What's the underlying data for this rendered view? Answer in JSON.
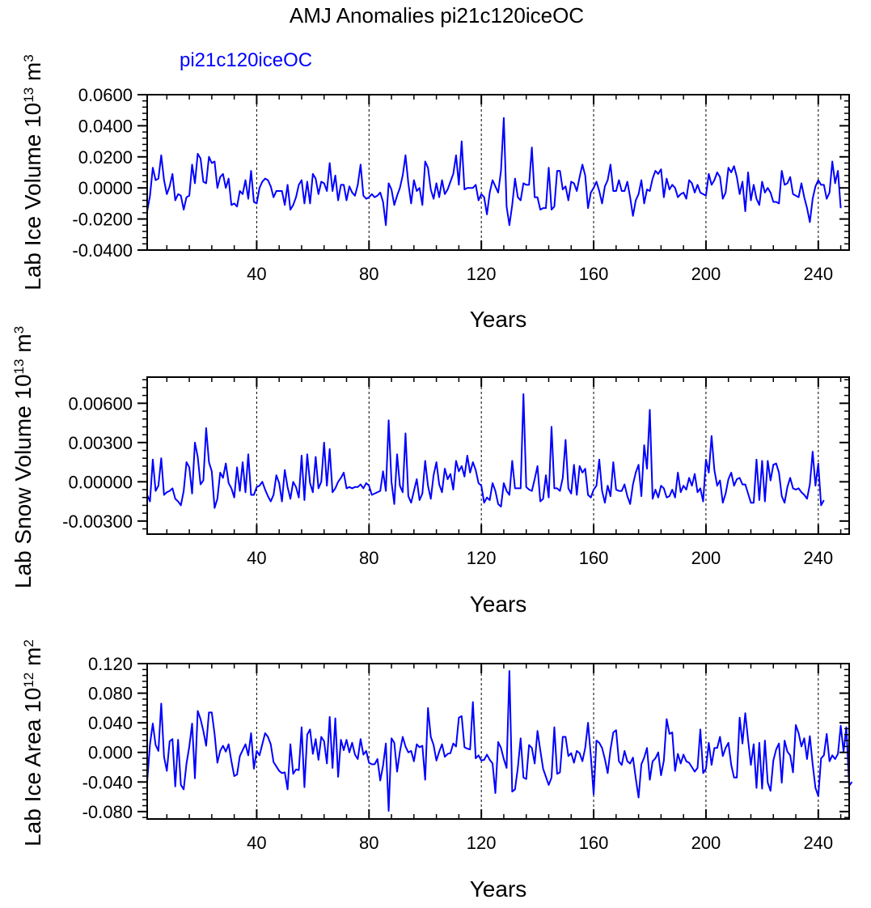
{
  "title": "AMJ Anomalies pi21c120iceOC",
  "legend_label": "pi21c120iceOC",
  "colors": {
    "series": "#0000ff",
    "axis": "#000000",
    "grid": "#000000"
  },
  "chart_data": [
    {
      "type": "line",
      "name": "ice-volume",
      "ylabel_main": "Lab Ice Volume 10",
      "ylabel_sup": "13",
      "ylabel_unit": "m",
      "ylabel_unit_sup": "3",
      "xlabel": "Years",
      "xlim": [
        1,
        251
      ],
      "ylim": [
        -0.04,
        0.06
      ],
      "yticks": [
        -0.04,
        -0.02,
        0.0,
        0.02,
        0.04,
        0.06
      ],
      "ytick_labels": [
        "-0.0400",
        "-0.0200",
        "0.0000",
        "0.0200",
        "0.0400",
        "0.0600"
      ],
      "xticks": [
        40,
        80,
        120,
        160,
        200,
        240
      ],
      "xtick_labels": [
        "40",
        "80",
        "120",
        "160",
        "200",
        "240"
      ],
      "grid_x": [
        40,
        80,
        120,
        160,
        200,
        240
      ],
      "series": [
        {
          "name": "pi21c120iceOC",
          "values": [
            -0.015,
            -0.005,
            0.013,
            0.005,
            0.006,
            0.021,
            0.005,
            -0.004,
            0.001,
            0.009,
            -0.008,
            -0.004,
            -0.005,
            -0.014,
            -0.006,
            -0.005,
            0.015,
            0.003,
            0.022,
            0.019,
            0.004,
            0.003,
            0.02,
            0.016,
            0.017,
            0.0,
            0.007,
            0.009,
            0.0,
            0.006,
            -0.011,
            -0.01,
            -0.012,
            -0.002,
            -0.004,
            0.005,
            -0.007,
            0.011,
            -0.009,
            -0.01,
            0.0,
            0.004,
            0.006,
            0.005,
            0.001,
            -0.006,
            -0.002,
            -0.002,
            -0.002,
            -0.011,
            0.002,
            -0.014,
            -0.011,
            -0.006,
            0.002,
            0.005,
            -0.01,
            0.004,
            -0.01,
            0.009,
            0.006,
            -0.004,
            0.004,
            0.003,
            -0.002,
            0.016,
            -0.002,
            0.008,
            -0.008,
            0.002,
            0.002,
            -0.008,
            0.001,
            -0.003,
            -0.005,
            0.002,
            0.015,
            -0.005,
            -0.007,
            -0.006,
            -0.004,
            -0.006,
            -0.005,
            -0.003,
            -0.009,
            -0.024,
            0.003,
            -0.001,
            -0.011,
            -0.005,
            0.0,
            0.008,
            0.021,
            0.003,
            -0.01,
            0.005,
            -0.002,
            0.0,
            -0.011,
            0.017,
            0.013,
            -0.001,
            -0.007,
            0.003,
            -0.006,
            0.005,
            -0.004,
            -0.001,
            0.004,
            0.009,
            0.021,
            0.002,
            0.03,
            -0.001,
            0.0,
            0.0,
            0.0,
            0.002,
            -0.008,
            -0.004,
            -0.006,
            -0.017,
            -0.003,
            0.005,
            0.001,
            -0.003,
            0.011,
            0.045,
            -0.012,
            -0.024,
            -0.011,
            0.006,
            -0.006,
            -0.008,
            0.003,
            0.002,
            0.002,
            0.026,
            -0.006,
            -0.006,
            -0.014,
            -0.013,
            -0.013,
            0.013,
            -0.014,
            -0.012,
            0.011,
            0.011,
            -0.001,
            0.001,
            -0.008,
            0.004,
            0.003,
            -0.002,
            0.007,
            0.015,
            0.008,
            -0.013,
            -0.003,
            0.0,
            0.004,
            -0.002,
            -0.01,
            0.001,
            0.005,
            0.015,
            -0.002,
            -0.002,
            0.005,
            -0.002,
            -0.002,
            0.004,
            -0.006,
            -0.018,
            -0.008,
            -0.004,
            0.005,
            -0.01,
            -0.001,
            -0.002,
            0.006,
            0.011,
            0.009,
            0.012,
            -0.006,
            0.006,
            -0.001,
            0.002,
            0.0,
            -0.006,
            -0.004,
            -0.003,
            -0.007,
            0.005,
            0.003,
            -0.003,
            0.002,
            -0.003,
            -0.004,
            -0.005,
            0.009,
            0.002,
            0.005,
            0.01,
            0.007,
            -0.007,
            -0.003,
            0.013,
            0.01,
            0.014,
            0.007,
            -0.004,
            0.004,
            -0.015,
            0.01,
            -0.008,
            0.002,
            -0.007,
            -0.011,
            0.004,
            -0.003,
            0.0,
            -0.003,
            -0.009,
            -0.009,
            -0.01,
            0.011,
            0.002,
            0.003,
            0.007,
            -0.004,
            -0.005,
            -0.006,
            0.003,
            -0.006,
            -0.013,
            -0.022,
            -0.007,
            0.001,
            0.005,
            0.002,
            0.002,
            -0.007,
            -0.003,
            0.017,
            0.003,
            0.011,
            -0.013
          ]
        }
      ]
    },
    {
      "type": "line",
      "name": "snow-volume",
      "ylabel_main": "Lab Snow Volume 10",
      "ylabel_sup": "13",
      "ylabel_unit": "m",
      "ylabel_unit_sup": "3",
      "xlabel": "Years",
      "xlim": [
        1,
        251
      ],
      "ylim": [
        -0.004,
        0.008
      ],
      "yticks": [
        -0.003,
        0.0,
        0.003,
        0.006
      ],
      "ytick_labels": [
        "-0.00300",
        "0.00000",
        "0.00300",
        "0.00600"
      ],
      "xticks": [
        40,
        80,
        120,
        160,
        200,
        240
      ],
      "xtick_labels": [
        "40",
        "80",
        "120",
        "160",
        "200",
        "240"
      ],
      "grid_x": [
        40,
        80,
        120,
        160,
        200,
        240
      ],
      "series": [
        {
          "name": "pi21c120iceOC",
          "values": [
            -0.001,
            -0.0015,
            0.0017,
            -0.0007,
            -0.0003,
            0.0018,
            -0.001,
            -0.0008,
            -0.0007,
            -0.0005,
            -0.0013,
            -0.0015,
            -0.0018,
            -0.0007,
            0.0015,
            0.0011,
            -0.0009,
            0.003,
            0.0019,
            -0.0002,
            0.0001,
            0.0041,
            0.0015,
            0.0008,
            -0.002,
            -0.0013,
            0.0007,
            0.0003,
            0.0014,
            -0.0001,
            -0.0005,
            -0.0012,
            0.0011,
            -0.0007,
            0.0015,
            -0.0008,
            0.0021,
            -0.001,
            -0.001,
            -0.0004,
            -0.0003,
            0.0,
            -0.0006,
            -0.0011,
            -0.0015,
            -0.001,
            0.0005,
            -0.0001,
            -0.0015,
            0.0009,
            -0.0004,
            -0.0013,
            0.0,
            -0.0004,
            -0.0012,
            0.002,
            -0.0014,
            0.0021,
            -0.0001,
            -0.0008,
            0.0019,
            -0.0005,
            0.0,
            0.003,
            -0.0003,
            0.0025,
            -0.0008,
            -0.0005,
            0.0,
            0.0003,
            0.0007,
            -0.0005,
            -0.0004,
            -0.0005,
            -0.0004,
            -0.0004,
            -0.0002,
            -0.0005,
            -0.0001,
            -0.0003,
            -0.001,
            -0.0009,
            -0.0008,
            -0.0007,
            0.0008,
            -0.0007,
            0.0047,
            0.0,
            -0.0017,
            0.0021,
            -0.0003,
            -0.0008,
            0.0037,
            -0.0011,
            -0.0016,
            -0.0007,
            0.0002,
            -0.0014,
            -0.0009,
            0.0016,
            -0.0003,
            -0.0013,
            0.0005,
            0.0015,
            -0.0002,
            -0.0008,
            0.001,
            0.0002,
            0.0006,
            -0.0006,
            0.0016,
            0.0008,
            0.0012,
            0.0004,
            0.002,
            0.0007,
            0.0015,
            0.0009,
            -0.0001,
            -0.0003,
            -0.0016,
            -0.0012,
            -0.0014,
            -0.0001,
            -0.0007,
            -0.0017,
            -0.0019,
            -0.0001,
            -0.0007,
            -0.001,
            0.0016,
            -0.0005,
            -0.0005,
            -0.0005,
            0.0067,
            -0.0004,
            -0.0006,
            -0.0007,
            0.0002,
            0.0012,
            -0.0015,
            -0.0013,
            0.0005,
            -0.0012,
            0.0042,
            -0.0005,
            -0.0005,
            -0.0007,
            0.0003,
            0.0032,
            -0.0005,
            -0.0009,
            0.0013,
            -0.001,
            0.0012,
            0.0007,
            0.001,
            -0.001,
            -0.0012,
            -0.0006,
            -0.0003,
            0.0017,
            -0.0007,
            -0.0016,
            -0.0003,
            -0.0011,
            0.0015,
            -0.0006,
            -0.0007,
            -0.0007,
            -0.0002,
            -0.0011,
            -0.0017,
            -0.0002,
            0.0007,
            0.0013,
            -0.0011,
            0.0028,
            0.001,
            0.0055,
            -0.0013,
            -0.0006,
            -0.0012,
            -0.0003,
            -0.0005,
            -0.0012,
            -0.0011,
            -0.0006,
            -0.0012,
            0.0007,
            -0.0008,
            -0.0003,
            -0.0006,
            0.0003,
            -0.0003,
            0.0006,
            -0.0008,
            -0.0005,
            -0.0015,
            0.0017,
            0.0007,
            0.0035,
            0.0009,
            -0.0003,
            0.0001,
            -0.0016,
            -0.0009,
            0.0002,
            0.0007,
            -0.0003,
            0.0002,
            0.0003,
            -0.0002,
            -0.0002,
            -0.0009,
            -0.0016,
            -0.0016,
            0.0017,
            -0.0014,
            0.0016,
            -0.0015,
            0.0016,
            0.0001,
            0.0013,
            0.0014,
            0.0007,
            -0.0011,
            -0.0016,
            -0.0004,
            0.0003,
            -0.0005,
            -0.0006,
            -0.0005,
            -0.0008,
            -0.001,
            -0.0013,
            -0.0002,
            0.0023,
            -0.0003,
            0.0014,
            -0.0018,
            -0.0014
          ]
        }
      ]
    },
    {
      "type": "line",
      "name": "ice-area",
      "ylabel_main": "Lab Ice Area 10",
      "ylabel_sup": "12",
      "ylabel_unit": "m",
      "ylabel_unit_sup": "2",
      "xlabel": "Years",
      "xlim": [
        1,
        251
      ],
      "ylim": [
        -0.09,
        0.12
      ],
      "yticks": [
        -0.08,
        -0.04,
        0.0,
        0.04,
        0.08,
        0.12
      ],
      "ytick_labels": [
        "-0.080",
        "-0.040",
        "0.000",
        "0.040",
        "0.080",
        "0.120"
      ],
      "xticks": [
        40,
        80,
        120,
        160,
        200,
        240
      ],
      "xtick_labels": [
        "40",
        "80",
        "120",
        "160",
        "200",
        "240"
      ],
      "grid_x": [
        40,
        80,
        120,
        160,
        200,
        240
      ],
      "series": [
        {
          "name": "pi21c120iceOC",
          "values": [
            -0.039,
            0.011,
            0.039,
            0.01,
            0.002,
            0.066,
            -0.006,
            -0.025,
            0.015,
            0.018,
            -0.046,
            0.017,
            -0.044,
            -0.05,
            -0.015,
            0.008,
            0.039,
            -0.035,
            0.056,
            0.045,
            0.029,
            0.009,
            0.054,
            0.054,
            0.025,
            -0.014,
            0.002,
            0.009,
            0.001,
            0.011,
            -0.012,
            -0.032,
            -0.03,
            -0.005,
            0.003,
            0.011,
            -0.004,
            0.026,
            -0.022,
            0.002,
            -0.004,
            0.011,
            0.026,
            0.021,
            0.011,
            -0.013,
            -0.019,
            -0.025,
            -0.028,
            -0.027,
            -0.05,
            0.011,
            -0.029,
            -0.023,
            -0.024,
            0.034,
            -0.047,
            0.024,
            0.031,
            -0.002,
            0.018,
            -0.01,
            0.021,
            0.015,
            -0.015,
            0.048,
            -0.021,
            0.046,
            -0.033,
            0.017,
            0.003,
            0.017,
            0.0,
            0.013,
            -0.003,
            -0.009,
            0.018,
            -0.003,
            0.002,
            -0.014,
            -0.016,
            -0.016,
            -0.009,
            -0.038,
            -0.018,
            0.012,
            -0.079,
            0.019,
            0.013,
            -0.026,
            0.001,
            0.021,
            0.008,
            0.0,
            0.002,
            -0.012,
            0.011,
            0.007,
            0.009,
            -0.037,
            0.06,
            0.021,
            0.01,
            -0.011,
            0.001,
            0.011,
            -0.006,
            -0.002,
            -0.001,
            0.012,
            0.008,
            0.047,
            0.049,
            0.007,
            0.005,
            0.004,
            0.068,
            -0.008,
            -0.004,
            -0.011,
            -0.01,
            -0.003,
            -0.01,
            -0.015,
            -0.055,
            0.014,
            0.006,
            -0.009,
            -0.021,
            0.11,
            -0.053,
            -0.05,
            -0.021,
            0.019,
            -0.034,
            -0.036,
            0.01,
            0.006,
            -0.015,
            0.029,
            0.003,
            -0.022,
            -0.033,
            -0.044,
            -0.034,
            0.034,
            -0.029,
            -0.027,
            0.021,
            0.021,
            -0.005,
            -0.001,
            -0.014,
            0.002,
            -0.001,
            -0.012,
            0.006,
            0.04,
            -0.005,
            -0.057,
            0.016,
            0.013,
            0.006,
            -0.009,
            -0.028,
            0.004,
            0.027,
            0.03,
            -0.012,
            -0.017,
            0.002,
            -0.012,
            -0.015,
            -0.007,
            -0.035,
            -0.061,
            -0.016,
            -0.007,
            0.006,
            -0.037,
            -0.012,
            -0.008,
            0.0,
            -0.031,
            -0.011,
            0.045,
            0.025,
            0.027,
            -0.025,
            -0.002,
            -0.015,
            -0.003,
            -0.012,
            -0.014,
            -0.02,
            -0.026,
            -0.021,
            0.031,
            -0.028,
            -0.022,
            0.013,
            -0.017,
            0.006,
            0.006,
            0.021,
            -0.005,
            0.006,
            0.013,
            -0.017,
            -0.034,
            -0.034,
            0.047,
            0.012,
            0.053,
            0.017,
            -0.017,
            0.011,
            -0.048,
            0.013,
            -0.049,
            0.016,
            -0.041,
            -0.052,
            -0.011,
            0.004,
            0.012,
            -0.041,
            0.016,
            0.001,
            -0.004,
            -0.027,
            0.037,
            0.026,
            0.008,
            0.019,
            -0.009,
            0.022,
            -0.016,
            -0.048,
            -0.059,
            -0.008,
            -0.004,
            0.025,
            -0.012,
            -0.004,
            -0.009,
            -0.002,
            0.036,
            0.001,
            0.034,
            -0.045,
            -0.04
          ]
        }
      ]
    }
  ]
}
